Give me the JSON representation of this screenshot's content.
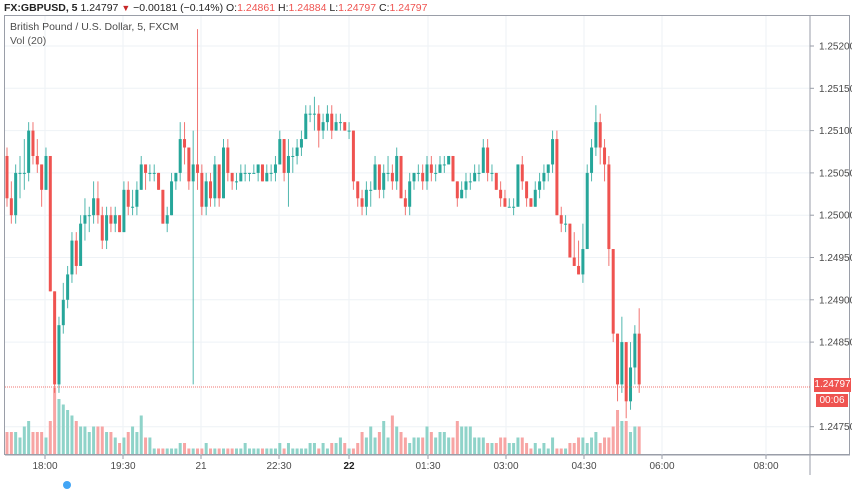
{
  "header": {
    "symbol": "FX:GBPUSD, 5",
    "last": "1.24797",
    "change_arrow": "▼",
    "change": "−0.00181 (−0.14%)",
    "o_label": "O:",
    "o_value": "1.24861",
    "h_label": "H:",
    "h_value": "1.24884",
    "l_label": "L:",
    "l_value": "1.24797",
    "c_label": "C:",
    "c_value": "1.24797"
  },
  "legend": {
    "title": "British Pound / U.S. Dollar, 5, FXCM",
    "volume": "Vol (20)"
  },
  "price_axis": {
    "labels": [
      "1.25200",
      "1.25150",
      "1.25100",
      "1.25050",
      "1.25000",
      "1.24950",
      "1.24900",
      "1.24850",
      "1.24750"
    ],
    "current_price_label": "1.24797",
    "countdown_label": "00:06"
  },
  "time_axis": {
    "labels": [
      "18:00",
      "19:30",
      "21",
      "22:30",
      "22",
      "01:30",
      "03:00",
      "04:30",
      "06:00",
      "08:00"
    ],
    "bold_labels": [
      "22"
    ]
  },
  "colors": {
    "up": "#26a69a",
    "down": "#ef5350",
    "vol_up": "#8fd3c9",
    "vol_down": "#f7a5a4",
    "grid": "#eef2f6",
    "axis": "#9a9ea8",
    "text": "#4a4a4a"
  },
  "chart_data": {
    "type": "candlestick",
    "title": "British Pound / U.S. Dollar, 5, FXCM",
    "symbol": "FX:GBPUSD",
    "interval": "5",
    "ylim": [
      1.247,
      1.2525
    ],
    "yticks": [
      1.2475,
      1.248,
      1.2485,
      1.249,
      1.2495,
      1.25,
      1.2505,
      1.251,
      1.2515,
      1.252
    ],
    "xticks": [
      "18:00",
      "19:30",
      "21",
      "22:30",
      "22",
      "01:30",
      "03:00",
      "04:30",
      "06:00",
      "08:00"
    ],
    "last_price": 1.24797,
    "volume_indicator": "Vol (20)",
    "bars": [
      [
        1.2507,
        1.2508,
        1.2501,
        1.2502,
        4
      ],
      [
        1.2502,
        1.2504,
        1.2499,
        1.25,
        4
      ],
      [
        1.25,
        1.2506,
        1.2499,
        1.2505,
        4
      ],
      [
        1.2505,
        1.2507,
        1.2502,
        1.2505,
        3
      ],
      [
        1.2505,
        1.2509,
        1.2503,
        1.2505,
        5
      ],
      [
        1.2505,
        1.2511,
        1.2504,
        1.251,
        6
      ],
      [
        1.251,
        1.2511,
        1.2506,
        1.2507,
        4
      ],
      [
        1.2507,
        1.2509,
        1.2505,
        1.2506,
        4
      ],
      [
        1.2506,
        1.2506,
        1.2501,
        1.2503,
        4
      ],
      [
        1.2503,
        1.2508,
        1.2503,
        1.2507,
        3
      ],
      [
        1.2507,
        1.2507,
        1.2491,
        1.2491,
        6
      ],
      [
        1.2491,
        1.2491,
        1.2479,
        1.248,
        12
      ],
      [
        1.248,
        1.2488,
        1.2479,
        1.2487,
        10
      ],
      [
        1.2487,
        1.2492,
        1.2486,
        1.249,
        9
      ],
      [
        1.249,
        1.2494,
        1.2489,
        1.2493,
        8
      ],
      [
        1.2493,
        1.2498,
        1.2492,
        1.2497,
        7
      ],
      [
        1.2497,
        1.2498,
        1.2493,
        1.2494,
        6
      ],
      [
        1.2494,
        1.25,
        1.2494,
        1.2499,
        5
      ],
      [
        1.2499,
        1.2502,
        1.2497,
        1.25,
        5
      ],
      [
        1.25,
        1.2501,
        1.2498,
        1.25,
        4
      ],
      [
        1.25,
        1.2504,
        1.2499,
        1.2502,
        5
      ],
      [
        1.2502,
        1.2504,
        1.2499,
        1.25,
        5
      ],
      [
        1.25,
        1.2501,
        1.2496,
        1.2497,
        5
      ],
      [
        1.2497,
        1.2501,
        1.2496,
        1.25,
        4
      ],
      [
        1.25,
        1.2501,
        1.2498,
        1.2499,
        4
      ],
      [
        1.2499,
        1.2501,
        1.2498,
        1.25,
        3
      ],
      [
        1.25,
        1.25,
        1.2498,
        1.2498,
        2
      ],
      [
        1.2498,
        1.2504,
        1.2498,
        1.2503,
        3
      ],
      [
        1.2503,
        1.2504,
        1.25,
        1.2501,
        4
      ],
      [
        1.2501,
        1.2503,
        1.25,
        1.2501,
        5
      ],
      [
        1.2501,
        1.2504,
        1.25,
        1.2503,
        4
      ],
      [
        1.2503,
        1.2507,
        1.2503,
        1.2506,
        7
      ],
      [
        1.2506,
        1.2506,
        1.2503,
        1.2505,
        3
      ],
      [
        1.2505,
        1.2506,
        1.2504,
        1.2505,
        3
      ],
      [
        1.2505,
        1.2506,
        1.2504,
        1.2505,
        1
      ],
      [
        1.2505,
        1.2505,
        1.2503,
        1.2503,
        1
      ],
      [
        1.2503,
        1.2503,
        1.2499,
        1.2499,
        1
      ],
      [
        1.2499,
        1.2501,
        1.2498,
        1.25,
        1
      ],
      [
        1.25,
        1.2505,
        1.25,
        1.2504,
        1
      ],
      [
        1.2504,
        1.2505,
        1.2503,
        1.2505,
        1
      ],
      [
        1.2505,
        1.2511,
        1.2504,
        1.2509,
        2
      ],
      [
        1.2509,
        1.2511,
        1.2506,
        1.2508,
        2
      ],
      [
        1.2508,
        1.2508,
        1.2503,
        1.2504,
        1
      ],
      [
        1.2504,
        1.251,
        1.248,
        1.2506,
        1
      ],
      [
        1.2506,
        1.2522,
        1.2503,
        1.2505,
        1
      ],
      [
        1.2505,
        1.2506,
        1.25,
        1.2501,
        1
      ],
      [
        1.2501,
        1.2505,
        1.25,
        1.2504,
        2
      ],
      [
        1.2504,
        1.2505,
        1.2501,
        1.2502,
        1
      ],
      [
        1.2502,
        1.2507,
        1.2501,
        1.2506,
        1
      ],
      [
        1.2506,
        1.2506,
        1.2501,
        1.2502,
        1
      ],
      [
        1.2502,
        1.2509,
        1.2502,
        1.2508,
        1
      ],
      [
        1.2508,
        1.2509,
        1.2504,
        1.2505,
        1
      ],
      [
        1.2505,
        1.2505,
        1.2503,
        1.2504,
        1
      ],
      [
        1.2504,
        1.2505,
        1.2503,
        1.2504,
        1
      ],
      [
        1.2504,
        1.2506,
        1.2504,
        1.2505,
        1
      ],
      [
        1.2505,
        1.2506,
        1.2504,
        1.2505,
        2
      ],
      [
        1.2505,
        1.2505,
        1.2504,
        1.2505,
        1
      ],
      [
        1.2505,
        1.2506,
        1.2505,
        1.2505,
        1
      ],
      [
        1.2505,
        1.2506,
        1.2504,
        1.2506,
        1
      ],
      [
        1.2506,
        1.2506,
        1.2504,
        1.2504,
        1
      ],
      [
        1.2504,
        1.2506,
        1.2504,
        1.2505,
        1
      ],
      [
        1.2505,
        1.2506,
        1.2504,
        1.2505,
        1
      ],
      [
        1.2505,
        1.2507,
        1.2504,
        1.2506,
        1
      ],
      [
        1.2506,
        1.251,
        1.2506,
        1.2509,
        2
      ],
      [
        1.2509,
        1.2509,
        1.2504,
        1.2505,
        1
      ],
      [
        1.2505,
        1.2509,
        1.2501,
        1.2507,
        2
      ],
      [
        1.2507,
        1.2508,
        1.2505,
        1.2507,
        1
      ],
      [
        1.2507,
        1.2509,
        1.2506,
        1.2508,
        1
      ],
      [
        1.2508,
        1.251,
        1.2507,
        1.2509,
        1
      ],
      [
        1.2509,
        1.2513,
        1.2509,
        1.2512,
        1
      ],
      [
        1.2512,
        1.2513,
        1.2511,
        1.2512,
        2
      ],
      [
        1.2512,
        1.2514,
        1.251,
        1.2512,
        2
      ],
      [
        1.2512,
        1.2513,
        1.2508,
        1.251,
        1
      ],
      [
        1.251,
        1.2512,
        1.2509,
        1.2511,
        2
      ],
      [
        1.2511,
        1.2513,
        1.251,
        1.2512,
        1
      ],
      [
        1.2512,
        1.2513,
        1.2509,
        1.251,
        2
      ],
      [
        1.251,
        1.2512,
        1.251,
        1.2511,
        2
      ],
      [
        1.2511,
        1.2512,
        1.251,
        1.2511,
        3
      ],
      [
        1.2511,
        1.2511,
        1.251,
        1.251,
        2
      ],
      [
        1.251,
        1.2511,
        1.2509,
        1.251,
        1
      ],
      [
        1.251,
        1.251,
        1.2503,
        1.2504,
        1
      ],
      [
        1.2504,
        1.2504,
        1.2501,
        1.2502,
        2
      ],
      [
        1.2502,
        1.2503,
        1.25,
        1.2501,
        4
      ],
      [
        1.2501,
        1.2504,
        1.25,
        1.2503,
        3
      ],
      [
        1.2503,
        1.2504,
        1.2501,
        1.2503,
        5
      ],
      [
        1.2503,
        1.2507,
        1.2503,
        1.2506,
        3
      ],
      [
        1.2506,
        1.2506,
        1.2502,
        1.2503,
        4
      ],
      [
        1.2503,
        1.2506,
        1.2502,
        1.2505,
        6
      ],
      [
        1.2505,
        1.2507,
        1.2504,
        1.2505,
        3
      ],
      [
        1.2505,
        1.2506,
        1.2503,
        1.2504,
        7
      ],
      [
        1.2504,
        1.2508,
        1.2503,
        1.2507,
        5
      ],
      [
        1.2507,
        1.2507,
        1.2502,
        1.2502,
        4
      ],
      [
        1.2502,
        1.2503,
        1.25,
        1.2501,
        3
      ],
      [
        1.2501,
        1.2505,
        1.25,
        1.2504,
        2
      ],
      [
        1.2504,
        1.2505,
        1.2503,
        1.2505,
        3
      ],
      [
        1.2505,
        1.2506,
        1.2504,
        1.2505,
        3
      ],
      [
        1.2505,
        1.2506,
        1.2503,
        1.2504,
        3
      ],
      [
        1.2504,
        1.2507,
        1.2503,
        1.2506,
        5
      ],
      [
        1.2506,
        1.2507,
        1.2504,
        1.2505,
        4
      ],
      [
        1.2505,
        1.2506,
        1.2504,
        1.2505,
        3
      ],
      [
        1.2505,
        1.2507,
        1.2505,
        1.2506,
        4
      ],
      [
        1.2506,
        1.2507,
        1.2505,
        1.2506,
        4
      ],
      [
        1.2506,
        1.2507,
        1.2506,
        1.2507,
        3
      ],
      [
        1.2507,
        1.2507,
        1.2504,
        1.2504,
        3
      ],
      [
        1.2504,
        1.2504,
        1.2501,
        1.2502,
        6
      ],
      [
        1.2502,
        1.2504,
        1.2502,
        1.2503,
        5
      ],
      [
        1.2503,
        1.2505,
        1.2502,
        1.2504,
        5
      ],
      [
        1.2504,
        1.2505,
        1.2503,
        1.2504,
        5
      ],
      [
        1.2504,
        1.2506,
        1.2504,
        1.2505,
        3
      ],
      [
        1.2505,
        1.2506,
        1.2504,
        1.2505,
        3
      ],
      [
        1.2505,
        1.2509,
        1.2505,
        1.2508,
        3
      ],
      [
        1.2508,
        1.2509,
        1.2504,
        1.2505,
        2
      ],
      [
        1.2505,
        1.2506,
        1.2504,
        1.2505,
        2
      ],
      [
        1.2505,
        1.2505,
        1.2503,
        1.2503,
        2
      ],
      [
        1.2503,
        1.2504,
        1.2501,
        1.2502,
        3
      ],
      [
        1.2502,
        1.2503,
        1.2501,
        1.2501,
        3
      ],
      [
        1.2501,
        1.2502,
        1.2501,
        1.2501,
        2
      ],
      [
        1.2501,
        1.2502,
        1.25,
        1.2501,
        2
      ],
      [
        1.2501,
        1.2506,
        1.2501,
        1.2506,
        3
      ],
      [
        1.2506,
        1.2507,
        1.2503,
        1.2504,
        3
      ],
      [
        1.2504,
        1.2504,
        1.2501,
        1.2502,
        2
      ],
      [
        1.2502,
        1.2502,
        1.2501,
        1.2501,
        1
      ],
      [
        1.2501,
        1.2504,
        1.2501,
        1.2503,
        2
      ],
      [
        1.2503,
        1.2505,
        1.2502,
        1.2504,
        1
      ],
      [
        1.2504,
        1.2506,
        1.2503,
        1.2505,
        2
      ],
      [
        1.2505,
        1.2506,
        1.2504,
        1.2506,
        1
      ],
      [
        1.2506,
        1.251,
        1.2505,
        1.2509,
        3
      ],
      [
        1.2509,
        1.251,
        1.25,
        1.25,
        1
      ],
      [
        1.25,
        1.2501,
        1.2498,
        1.2499,
        1
      ],
      [
        1.2499,
        1.25,
        1.2498,
        1.2499,
        1
      ],
      [
        1.2499,
        1.2499,
        1.2495,
        1.2495,
        2
      ],
      [
        1.2495,
        1.2498,
        1.2494,
        1.2494,
        2
      ],
      [
        1.2494,
        1.2497,
        1.2493,
        1.2493,
        3
      ],
      [
        1.2493,
        1.2499,
        1.2492,
        1.2496,
        3
      ],
      [
        1.2496,
        1.2506,
        1.2496,
        1.2505,
        2
      ],
      [
        1.2505,
        1.2509,
        1.2504,
        1.2508,
        3
      ],
      [
        1.2508,
        1.2513,
        1.2507,
        1.2511,
        4
      ],
      [
        1.2511,
        1.2512,
        1.2506,
        1.2508,
        2
      ],
      [
        1.2508,
        1.2509,
        1.2504,
        1.2506,
        3
      ],
      [
        1.2506,
        1.2507,
        1.2494,
        1.2496,
        3
      ],
      [
        1.2496,
        1.2496,
        1.2485,
        1.2486,
        5
      ],
      [
        1.2486,
        1.2486,
        1.2478,
        1.248,
        8
      ],
      [
        1.248,
        1.2488,
        1.2479,
        1.2485,
        6
      ],
      [
        1.2485,
        1.2485,
        1.2476,
        1.2478,
        6
      ],
      [
        1.2478,
        1.2485,
        1.2477,
        1.2482,
        4
      ],
      [
        1.2482,
        1.2487,
        1.248,
        1.2486,
        5
      ],
      [
        1.2486,
        1.2489,
        1.2479,
        1.248,
        5
      ]
    ]
  }
}
